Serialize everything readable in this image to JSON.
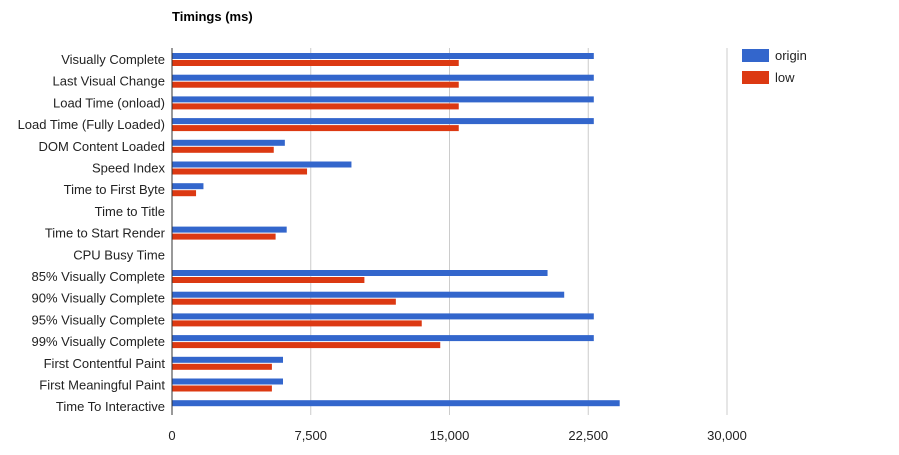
{
  "chart_data": {
    "type": "bar",
    "orientation": "horizontal",
    "title": "Timings (ms)",
    "xlabel": "",
    "ylabel": "",
    "xlim": [
      0,
      30000
    ],
    "x_ticks": [
      0,
      7500,
      15000,
      22500,
      30000
    ],
    "x_tick_labels": [
      "0",
      "7,500",
      "15,000",
      "22,500",
      "30,000"
    ],
    "grid": true,
    "legend_position": "right",
    "categories": [
      "Visually Complete",
      "Last Visual Change",
      "Load Time (onload)",
      "Load Time (Fully Loaded)",
      "DOM Content Loaded",
      "Speed Index",
      "Time to First Byte",
      "Time to Title",
      "Time to Start Render",
      "CPU Busy Time",
      "85% Visually Complete",
      "90% Visually Complete",
      "95% Visually Complete",
      "99% Visually Complete",
      "First Contentful Paint",
      "First Meaningful Paint",
      "Time To Interactive"
    ],
    "series": [
      {
        "name": "origin",
        "color": "#3366cc",
        "values": [
          22800,
          22800,
          22800,
          22800,
          6100,
          9700,
          1700,
          0,
          6200,
          0,
          20300,
          21200,
          22800,
          22800,
          6000,
          6000,
          24200
        ]
      },
      {
        "name": "low",
        "color": "#dc3912",
        "values": [
          15500,
          15500,
          15500,
          15500,
          5500,
          7300,
          1300,
          0,
          5600,
          0,
          10400,
          12100,
          13500,
          14500,
          5400,
          5400,
          0
        ]
      }
    ]
  }
}
